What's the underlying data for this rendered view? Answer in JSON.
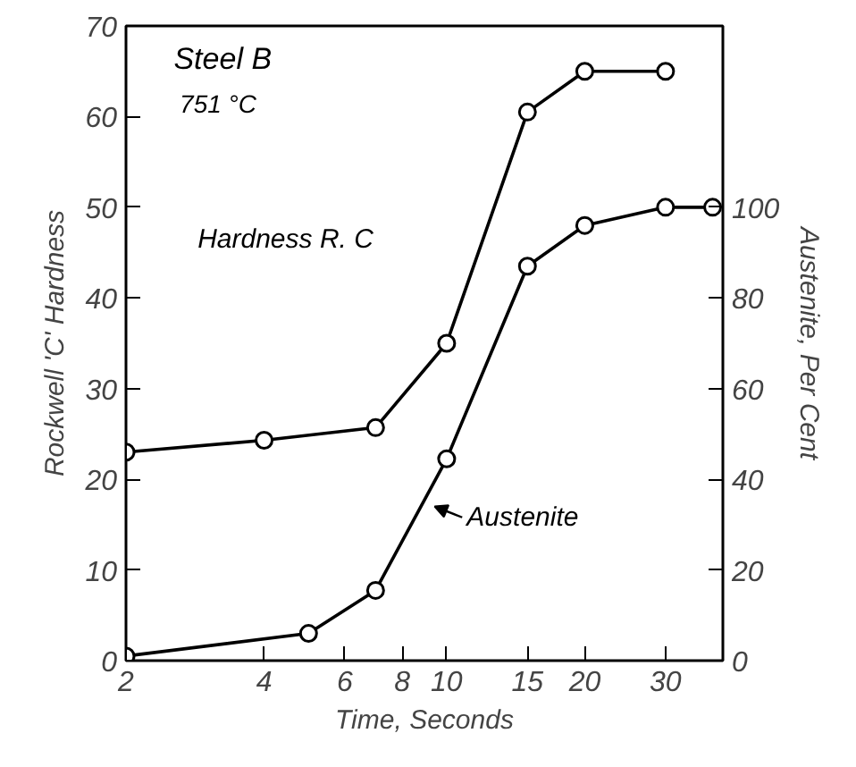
{
  "chart_data": {
    "type": "line",
    "xlabel": "Time, Seconds",
    "ylabel": "Rockwell 'C' Hardness",
    "y2label": "Austenite, Per Cent",
    "log": "x",
    "xlim": [
      2,
      40
    ],
    "xticks": [
      2,
      4,
      6,
      8,
      10,
      15,
      20,
      30
    ],
    "ylim": [
      0,
      70
    ],
    "yticks": [
      0,
      10,
      20,
      30,
      40,
      50,
      60,
      70
    ],
    "y2lim": [
      0,
      140
    ],
    "y2ticks": [
      0,
      20,
      40,
      60,
      80,
      100
    ],
    "grid": false,
    "marker": "circle",
    "line_style": "solid",
    "annotations": [
      "Steel B",
      "751 °C",
      "Hardness R. C",
      {
        "text": "Austenite",
        "x": 9.2,
        "y": 17
      }
    ],
    "series": [
      {
        "color": "#000000",
        "x": [
          2,
          4,
          7,
          10,
          15,
          20,
          30
        ],
        "values": [
          23,
          24.3,
          25.7,
          35,
          60.5,
          65,
          65
        ]
      },
      {
        "color": "#000000",
        "axis": "y2",
        "x": [
          2,
          5,
          7,
          10,
          15,
          20,
          30,
          38
        ],
        "values": [
          1,
          6,
          15.5,
          44.5,
          87,
          96,
          100,
          100
        ]
      }
    ]
  }
}
